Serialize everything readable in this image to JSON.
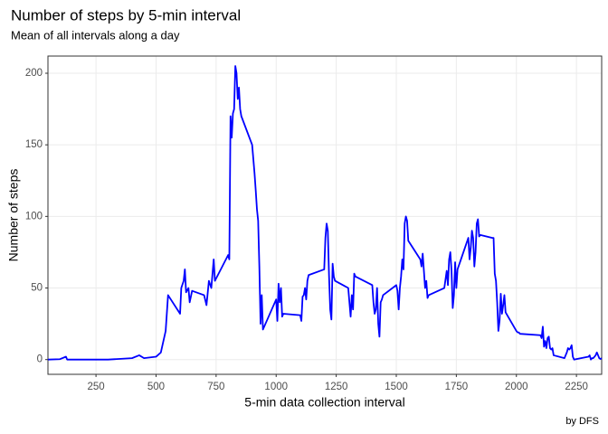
{
  "chart_data": {
    "type": "line",
    "title": "Number of steps by 5-min interval",
    "subtitle": "Mean of all intervals along a day",
    "x_label": "5-min data collection interval",
    "y_label": "Number of steps",
    "caption": "by DFS",
    "x": [
      50,
      100,
      125,
      130,
      300,
      400,
      430,
      450,
      500,
      520,
      540,
      550,
      600,
      605,
      615,
      620,
      625,
      635,
      640,
      650,
      700,
      710,
      720,
      730,
      740,
      745,
      800,
      805,
      810,
      815,
      820,
      825,
      830,
      835,
      840,
      845,
      850,
      855,
      900,
      905,
      910,
      915,
      920,
      925,
      930,
      935,
      940,
      945,
      1000,
      1005,
      1010,
      1015,
      1020,
      1025,
      1030,
      1100,
      1105,
      1110,
      1115,
      1120,
      1125,
      1130,
      1135,
      1200,
      1205,
      1210,
      1215,
      1220,
      1225,
      1230,
      1235,
      1240,
      1245,
      1300,
      1305,
      1310,
      1315,
      1320,
      1325,
      1330,
      1400,
      1405,
      1410,
      1415,
      1420,
      1425,
      1430,
      1435,
      1440,
      1445,
      1500,
      1505,
      1510,
      1515,
      1520,
      1525,
      1530,
      1535,
      1540,
      1545,
      1550,
      1600,
      1605,
      1610,
      1615,
      1620,
      1625,
      1630,
      1635,
      1700,
      1705,
      1710,
      1715,
      1720,
      1725,
      1730,
      1735,
      1740,
      1745,
      1750,
      1755,
      1800,
      1805,
      1810,
      1815,
      1820,
      1825,
      1830,
      1835,
      1840,
      1845,
      1850,
      1900,
      1905,
      1910,
      1915,
      1920,
      1925,
      1930,
      1935,
      1940,
      1945,
      1950,
      1955,
      2000,
      2005,
      2010,
      2015,
      2100,
      2105,
      2110,
      2115,
      2120,
      2125,
      2130,
      2135,
      2140,
      2145,
      2150,
      2155,
      2200,
      2205,
      2210,
      2215,
      2220,
      2225,
      2230,
      2235,
      2240,
      2300,
      2305,
      2310,
      2315,
      2320,
      2325,
      2330,
      2335,
      2340,
      2345,
      2350,
      2355
    ],
    "series": [
      {
        "name": "Number of steps",
        "color": "#0000ff",
        "values": [
          0,
          0.3,
          2,
          0,
          0,
          1,
          3,
          1,
          2,
          5,
          20,
          45,
          32,
          50,
          55,
          63,
          47,
          50,
          40,
          48,
          45,
          38,
          55,
          50,
          70,
          55,
          73,
          70,
          170,
          155,
          172,
          175,
          205,
          200,
          182,
          190,
          175,
          170,
          150,
          140,
          130,
          118,
          105,
          97,
          65,
          25,
          45,
          21,
          42,
          27,
          53,
          40,
          50,
          30,
          32,
          31,
          27,
          44,
          45,
          50,
          42,
          55,
          59,
          63,
          85,
          95,
          90,
          59,
          35,
          28,
          67,
          58,
          55,
          50,
          40,
          30,
          45,
          35,
          60,
          58,
          52,
          40,
          32,
          35,
          50,
          25,
          16,
          40,
          42,
          45,
          52,
          48,
          35,
          50,
          58,
          70,
          63,
          95,
          100,
          97,
          83,
          70,
          65,
          74,
          62,
          50,
          55,
          43,
          45,
          50,
          56,
          62,
          52,
          70,
          75,
          62,
          36,
          45,
          68,
          50,
          63,
          85,
          70,
          78,
          90,
          85,
          65,
          75,
          95,
          98,
          86,
          87,
          85,
          85,
          60,
          55,
          40,
          20,
          27,
          46,
          32,
          38,
          45,
          33,
          20,
          19,
          19,
          18,
          17,
          15,
          23,
          9,
          13,
          8,
          15,
          16,
          8,
          7,
          8,
          3,
          1,
          3,
          5,
          8,
          7,
          8,
          10,
          2,
          0,
          2,
          3,
          0,
          1,
          1,
          2,
          3,
          5,
          3,
          1,
          0.4,
          1
        ]
      }
    ],
    "xlim": [
      50,
      2355
    ],
    "ylim": [
      -10.3,
      212
    ],
    "xticks": [
      250,
      500,
      750,
      1000,
      1250,
      1500,
      1750,
      2000,
      2250
    ],
    "yticks": [
      0,
      50,
      100,
      150,
      200
    ],
    "grid": true
  }
}
